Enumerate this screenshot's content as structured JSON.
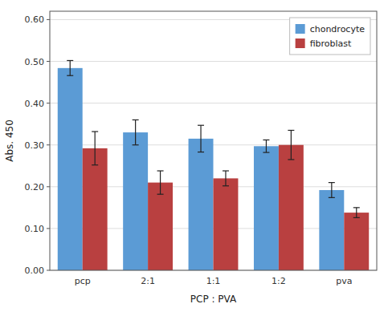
{
  "chart_data": {
    "type": "bar",
    "categories": [
      "pcp",
      "2:1",
      "1:1",
      "1:2",
      "pva"
    ],
    "series": [
      {
        "name": "chondrocyte",
        "color": "#5B9BD5",
        "values": [
          0.484,
          0.33,
          0.315,
          0.297,
          0.192
        ],
        "errors": [
          0.018,
          0.03,
          0.032,
          0.015,
          0.018
        ]
      },
      {
        "name": "fibroblast",
        "color": "#B94040",
        "values": [
          0.292,
          0.21,
          0.22,
          0.3,
          0.138
        ],
        "errors": [
          0.04,
          0.028,
          0.018,
          0.035,
          0.012
        ]
      }
    ],
    "xlabel": "PCP : PVA",
    "ylabel": "Abs. 450",
    "ylim": [
      0.0,
      0.62
    ],
    "yticks": [
      {
        "value": 0.0,
        "label": "0.00"
      },
      {
        "value": 0.1,
        "label": "0.10"
      },
      {
        "value": 0.2,
        "label": "0.20"
      },
      {
        "value": 0.3,
        "label": "0.30"
      },
      {
        "value": 0.4,
        "label": "0.40"
      },
      {
        "value": 0.5,
        "label": "0.50"
      },
      {
        "value": 0.6,
        "label": "0.60"
      }
    ],
    "grid": true,
    "legend": "upper right"
  }
}
